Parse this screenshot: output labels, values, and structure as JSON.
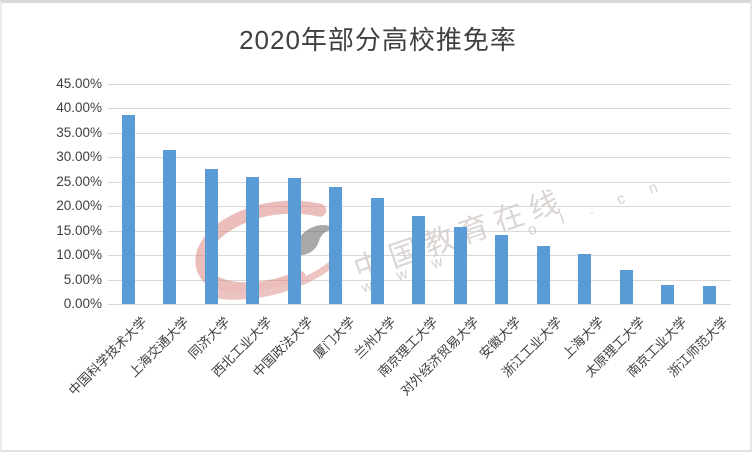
{
  "watermark": {
    "brand_text": "中国教育在线",
    "url_text": "w w w . e o l . c n",
    "logo_red": "#d98d88",
    "logo_dark": "#616161"
  },
  "chart_data": {
    "type": "bar",
    "title": "2020年部分高校推免率",
    "categories": [
      "中国科学技术大学",
      "上海交通大学",
      "同济大学",
      "西北工业大学",
      "中国政法大学",
      "厦门大学",
      "兰州大学",
      "南京理工大学",
      "对外经济贸易大学",
      "安徽大学",
      "浙江工业大学",
      "上海大学",
      "太原理工大学",
      "南京工业大学",
      "浙江师范大学"
    ],
    "values": [
      38.6,
      31.4,
      27.6,
      26.0,
      25.7,
      23.9,
      21.7,
      18.0,
      15.7,
      14.0,
      11.9,
      10.2,
      7.0,
      3.8,
      3.6
    ],
    "value_unit": "%",
    "y_ticks": [
      "45.00%",
      "40.00%",
      "35.00%",
      "30.00%",
      "25.00%",
      "20.00%",
      "15.00%",
      "10.00%",
      "5.00%",
      "0.00%"
    ],
    "ylim": [
      0,
      45
    ],
    "y_tick_step": 5,
    "grid": true,
    "legend": "none",
    "bar_color": "#5b9bd5",
    "gridline_color": "#d9d9d9",
    "label_color": "#3f3f3f",
    "title_color": "#404040"
  }
}
